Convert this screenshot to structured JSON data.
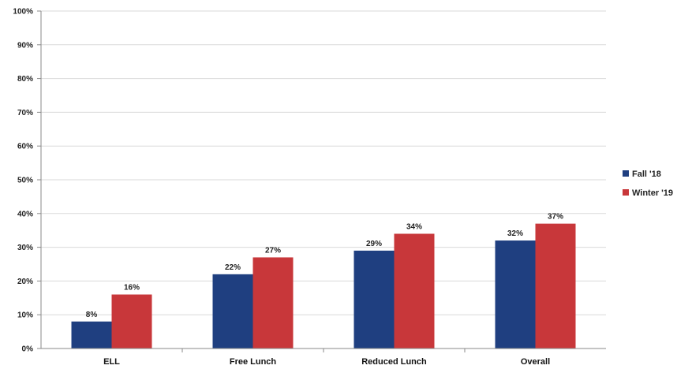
{
  "chart_data": {
    "type": "bar",
    "categories": [
      "ELL",
      "Free Lunch",
      "Reduced Lunch",
      "Overall"
    ],
    "series": [
      {
        "name": "Fall '18",
        "values": [
          8,
          22,
          29,
          32
        ],
        "labels": [
          "8%",
          "22%",
          "29%",
          "32%"
        ],
        "color": "#1F3F80"
      },
      {
        "name": "Winter '19",
        "values": [
          16,
          27,
          34,
          37
        ],
        "labels": [
          "16%",
          "27%",
          "34%",
          "37%"
        ],
        "color": "#C8373A"
      }
    ],
    "title": "",
    "xlabel": "",
    "ylabel": "",
    "ylim": [
      0,
      100
    ],
    "yticks": [
      0,
      10,
      20,
      30,
      40,
      50,
      60,
      70,
      80,
      90,
      100
    ],
    "ytick_labels": [
      "0%",
      "10%",
      "20%",
      "30%",
      "40%",
      "50%",
      "60%",
      "70%",
      "80%",
      "90%",
      "100%"
    ],
    "grid": true,
    "legend": "right"
  }
}
